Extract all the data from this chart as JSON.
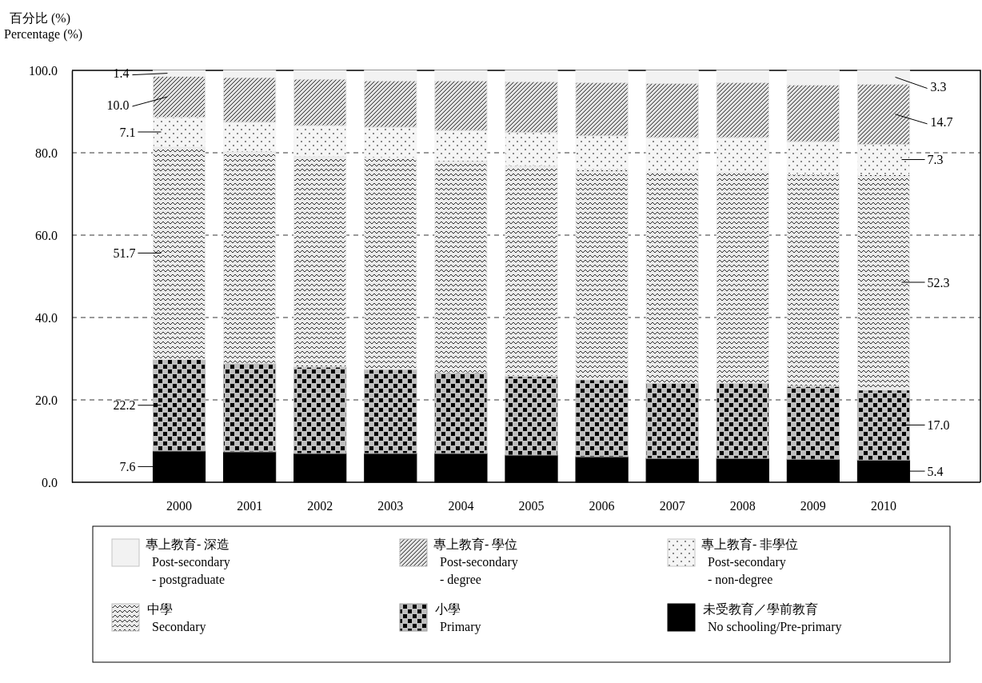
{
  "chart_data": {
    "type": "bar",
    "stacked": true,
    "ylabel": "百分比 (%)\nPercentage (%)",
    "categories": [
      "2000",
      "2001",
      "2002",
      "2003",
      "2004",
      "2005",
      "2006",
      "2007",
      "2008",
      "2009",
      "2010"
    ],
    "ylim": [
      0,
      100
    ],
    "yticks": [
      {
        "value": 0,
        "label": "0.0"
      },
      {
        "value": 20,
        "label": "20.0"
      },
      {
        "value": 40,
        "label": "40.0"
      },
      {
        "value": 60,
        "label": "60.0"
      },
      {
        "value": 80,
        "label": "80.0"
      },
      {
        "value": 100,
        "label": "100.0"
      }
    ],
    "grid": "y",
    "legend": "bottom",
    "series": [
      {
        "name": "未受教育／學前教育\nNo schooling/Pre-primary",
        "color": "#000000",
        "values": [
          7.6,
          7.4,
          7.0,
          7.0,
          7.0,
          6.6,
          6.2,
          5.8,
          5.8,
          5.6,
          5.4
        ],
        "value_labels": [
          "7.6",
          null,
          null,
          null,
          null,
          null,
          null,
          null,
          null,
          null,
          "5.4"
        ]
      },
      {
        "name": "小學\nPrimary",
        "color": "#bfbfbf",
        "values": [
          22.2,
          21.5,
          21.0,
          20.4,
          19.6,
          19.2,
          18.7,
          18.3,
          18.3,
          17.7,
          17.0
        ],
        "value_labels": [
          "22.2",
          null,
          null,
          null,
          null,
          null,
          null,
          null,
          null,
          null,
          "17.0"
        ]
      },
      {
        "name": "中學\nSecondary",
        "color": "#ebebeb",
        "values": [
          51.7,
          51.5,
          51.2,
          51.4,
          51.5,
          51.1,
          51.0,
          51.4,
          51.4,
          51.5,
          52.3
        ],
        "value_labels": [
          "51.7",
          null,
          null,
          null,
          null,
          null,
          null,
          null,
          null,
          null,
          "52.3"
        ]
      },
      {
        "name": "專上教育- 非學位\nPost-secondary\n- non-degree",
        "color": "#f5f5f5",
        "values": [
          7.1,
          7.0,
          7.4,
          7.4,
          7.3,
          8.0,
          8.2,
          8.2,
          8.2,
          7.9,
          7.3
        ],
        "value_labels": [
          "7.1",
          null,
          null,
          null,
          null,
          null,
          null,
          null,
          null,
          null,
          "7.3"
        ]
      },
      {
        "name": "專上教育- 學位\nPost-secondary\n- degree",
        "color": "#e0e0e0",
        "values": [
          10.0,
          10.9,
          11.3,
          11.3,
          12.1,
          12.4,
          13.0,
          13.2,
          13.4,
          13.8,
          14.7
        ],
        "value_labels": [
          "10.0",
          null,
          null,
          null,
          null,
          null,
          null,
          null,
          null,
          null,
          "14.7"
        ]
      },
      {
        "name": "專上教育- 深造\nPost-secondary\n- postgraduate",
        "color": "#f2f2f2",
        "values": [
          1.4,
          1.7,
          2.1,
          2.5,
          2.5,
          2.7,
          2.9,
          3.1,
          2.9,
          3.5,
          3.3
        ],
        "value_labels": [
          "1.4",
          null,
          null,
          null,
          null,
          null,
          null,
          null,
          null,
          null,
          "3.3"
        ]
      }
    ]
  }
}
